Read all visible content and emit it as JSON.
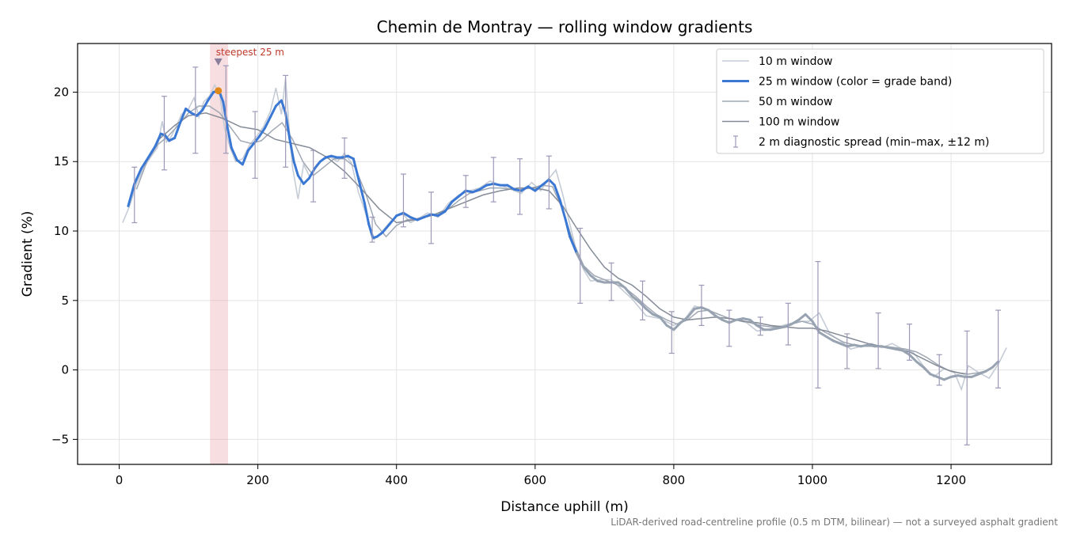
{
  "chart_data": {
    "type": "line",
    "title": "Chemin de Montray — rolling window gradients",
    "xlabel": "Distance uphill (m)",
    "ylabel": "Gradient (%)",
    "xlim": [
      -60,
      1345
    ],
    "ylim": [
      -6.8,
      23.5
    ],
    "xticks": [
      0,
      200,
      400,
      600,
      800,
      1000,
      1200
    ],
    "yticks": [
      -5,
      0,
      5,
      10,
      15,
      20
    ],
    "ytick_labels": [
      "−5",
      "0",
      "5",
      "10",
      "15",
      "20"
    ],
    "grid": true,
    "legend_position": "top-right",
    "caption": "LiDAR-derived road-centreline profile (0.5 m DTM, bilinear) — not a surveyed asphalt gradient",
    "highlight_band": {
      "x0": 131,
      "x1": 157,
      "color": "#e8a0a8"
    },
    "annotation": {
      "text": "steepest 25 m",
      "x": 143,
      "y": 22.2,
      "peak_x": 143,
      "peak_y": 20.1
    },
    "colors": {
      "w10": "#c5ccd6",
      "w25_steep": "#3a78d4",
      "w25_gentle": "#98a3b2",
      "w50": "#a0a8b4",
      "w100": "#858c97",
      "errorbar": "#9c98b8",
      "annotation": "#c0392b",
      "peak_marker": "#e0891a"
    },
    "series": [
      {
        "name": "10 m window",
        "x": [
          5,
          15,
          25,
          35,
          45,
          55,
          62,
          68,
          75,
          82,
          90,
          100,
          108,
          115,
          122,
          130,
          138,
          145,
          152,
          160,
          168,
          178,
          188,
          198,
          208,
          218,
          226,
          234,
          240,
          245,
          250,
          258,
          266,
          275,
          285,
          295,
          305,
          315,
          325,
          335,
          345,
          352,
          360,
          368,
          378,
          390,
          400,
          410,
          420,
          432,
          445,
          460,
          475,
          490,
          505,
          520,
          535,
          550,
          565,
          580,
          595,
          608,
          620,
          630,
          640,
          650,
          660,
          670,
          680,
          695,
          710,
          725,
          740,
          760,
          780,
          800,
          815,
          830,
          845,
          860,
          875,
          890,
          905,
          920,
          935,
          950,
          965,
          980,
          995,
          1010,
          1025,
          1040,
          1055,
          1070,
          1085,
          1100,
          1115,
          1130,
          1145,
          1160,
          1175,
          1190,
          1205,
          1215,
          1225,
          1240,
          1255,
          1268,
          1280
        ],
        "y": [
          10.6,
          11.8,
          13.4,
          14.5,
          15.3,
          16.0,
          17.9,
          16.4,
          16.8,
          17.5,
          18.4,
          18.8,
          19.6,
          18.2,
          19.3,
          19.7,
          20.5,
          19.8,
          17.4,
          16.0,
          15.0,
          15.2,
          16.2,
          16.8,
          17.5,
          18.6,
          20.3,
          18.4,
          21.0,
          17.5,
          14.6,
          12.3,
          14.8,
          13.9,
          14.8,
          15.2,
          15.3,
          15.0,
          15.6,
          14.9,
          12.8,
          11.8,
          10.6,
          9.4,
          9.9,
          10.6,
          11.1,
          11.2,
          10.6,
          10.9,
          11.3,
          11.0,
          12.0,
          12.6,
          12.9,
          13.1,
          13.6,
          13.3,
          13.0,
          12.7,
          13.5,
          12.9,
          13.8,
          14.4,
          12.6,
          10.5,
          8.5,
          7.2,
          6.4,
          6.5,
          6.5,
          5.8,
          5.1,
          3.9,
          3.7,
          3.2,
          3.6,
          4.6,
          4.4,
          4.1,
          3.8,
          3.6,
          3.4,
          2.8,
          2.9,
          3.1,
          3.3,
          3.5,
          3.5,
          4.1,
          2.6,
          2.1,
          1.5,
          1.7,
          1.9,
          1.6,
          1.9,
          1.5,
          1.3,
          0.3,
          -0.5,
          0.1,
          -0.2,
          -1.4,
          0.3,
          -0.2,
          -0.6,
          0.4,
          1.6
        ]
      },
      {
        "name": "25 m window (color = grade band)",
        "x": [
          13,
          22,
          32,
          42,
          52,
          60,
          66,
          72,
          80,
          88,
          96,
          104,
          112,
          120,
          128,
          136,
          144,
          150,
          156,
          162,
          170,
          178,
          186,
          194,
          202,
          210,
          218,
          226,
          234,
          240,
          246,
          252,
          258,
          266,
          274,
          282,
          290,
          298,
          306,
          314,
          322,
          330,
          338,
          346,
          354,
          360,
          366,
          372,
          380,
          390,
          400,
          410,
          420,
          430,
          440,
          450,
          460,
          470,
          480,
          490,
          500,
          510,
          520,
          530,
          540,
          550,
          560,
          570,
          580,
          590,
          600,
          610,
          620,
          628,
          636,
          644,
          650,
          660,
          670,
          680,
          690,
          700,
          710,
          720,
          730,
          740,
          750,
          760,
          770,
          780,
          790,
          800,
          810,
          820,
          830,
          840,
          850,
          860,
          870,
          880,
          890,
          900,
          910,
          920,
          930,
          940,
          950,
          960,
          970,
          980,
          990,
          1000,
          1010,
          1020,
          1030,
          1040,
          1050,
          1060,
          1070,
          1080,
          1090,
          1100,
          1110,
          1120,
          1130,
          1140,
          1150,
          1160,
          1170,
          1180,
          1190,
          1200,
          1210,
          1220,
          1230,
          1240,
          1250,
          1260,
          1268
        ],
        "y": [
          11.8,
          13.4,
          14.5,
          15.3,
          16.1,
          17.0,
          16.9,
          16.5,
          16.7,
          17.8,
          18.8,
          18.5,
          18.3,
          18.7,
          19.4,
          20.0,
          20.1,
          19.3,
          17.5,
          16.0,
          15.1,
          14.8,
          15.8,
          16.3,
          16.8,
          17.4,
          18.2,
          19.0,
          19.4,
          18.5,
          16.6,
          15.0,
          14.0,
          13.4,
          13.8,
          14.5,
          15.0,
          15.3,
          15.4,
          15.3,
          15.3,
          15.4,
          15.2,
          13.6,
          12.0,
          10.5,
          9.5,
          9.6,
          9.9,
          10.5,
          11.1,
          11.3,
          11.0,
          10.8,
          11.0,
          11.2,
          11.1,
          11.4,
          12.1,
          12.5,
          12.9,
          12.8,
          13.0,
          13.3,
          13.4,
          13.3,
          13.3,
          13.0,
          12.9,
          13.2,
          12.9,
          13.3,
          13.7,
          13.3,
          12.2,
          10.8,
          9.6,
          8.4,
          7.4,
          6.8,
          6.4,
          6.3,
          6.3,
          6.3,
          5.9,
          5.3,
          4.9,
          4.4,
          4.0,
          3.8,
          3.2,
          2.9,
          3.4,
          3.8,
          4.4,
          4.5,
          4.3,
          3.9,
          3.6,
          3.4,
          3.6,
          3.7,
          3.6,
          3.2,
          2.9,
          2.9,
          3.0,
          3.1,
          3.3,
          3.6,
          4.0,
          3.5,
          2.7,
          2.4,
          2.1,
          1.9,
          1.7,
          1.8,
          1.7,
          1.8,
          1.7,
          1.7,
          1.6,
          1.5,
          1.4,
          1.1,
          0.6,
          0.2,
          -0.3,
          -0.5,
          -0.7,
          -0.5,
          -0.4,
          -0.5,
          -0.5,
          -0.3,
          -0.1,
          0.2,
          0.6
        ]
      },
      {
        "name": "50 m window",
        "x": [
          25,
          40,
          55,
          70,
          85,
          100,
          115,
          130,
          145,
          160,
          175,
          190,
          205,
          220,
          235,
          250,
          265,
          280,
          295,
          310,
          325,
          340,
          355,
          370,
          385,
          400,
          415,
          430,
          445,
          460,
          475,
          490,
          505,
          520,
          535,
          550,
          565,
          580,
          595,
          610,
          625,
          640,
          655,
          670,
          685,
          700,
          715,
          730,
          745,
          760,
          775,
          790,
          805,
          820,
          835,
          850,
          865,
          880,
          895,
          910,
          925,
          940,
          955,
          970,
          985,
          1000,
          1015,
          1030,
          1045,
          1060,
          1075,
          1090,
          1105,
          1120,
          1135,
          1150,
          1165,
          1180,
          1195,
          1210,
          1225,
          1240,
          1255
        ],
        "y": [
          13.0,
          15.0,
          16.2,
          16.8,
          17.6,
          18.5,
          19.0,
          19.0,
          18.5,
          17.5,
          16.5,
          16.3,
          16.5,
          17.2,
          17.8,
          16.6,
          15.0,
          14.0,
          14.6,
          15.2,
          15.2,
          14.6,
          12.8,
          10.5,
          9.6,
          10.4,
          10.8,
          10.9,
          11.1,
          11.2,
          11.6,
          12.2,
          12.7,
          12.9,
          13.1,
          13.1,
          13.0,
          13.0,
          13.1,
          13.3,
          13.2,
          11.5,
          9.2,
          7.5,
          6.8,
          6.5,
          6.2,
          5.9,
          5.3,
          4.6,
          4.0,
          3.6,
          3.3,
          3.6,
          4.2,
          4.3,
          4.0,
          3.7,
          3.6,
          3.4,
          3.2,
          3.1,
          3.1,
          3.3,
          3.5,
          3.3,
          2.8,
          2.4,
          2.0,
          1.8,
          1.7,
          1.7,
          1.7,
          1.6,
          1.5,
          1.3,
          0.9,
          0.4,
          0.0,
          -0.2,
          -0.3,
          -0.2,
          0.0
        ]
      },
      {
        "name": "100 m window",
        "x": [
          55,
          80,
          100,
          125,
          150,
          175,
          200,
          225,
          250,
          275,
          300,
          325,
          350,
          375,
          400,
          425,
          450,
          475,
          500,
          525,
          550,
          575,
          600,
          620,
          640,
          660,
          680,
          700,
          720,
          740,
          760,
          780,
          800,
          820,
          840,
          860,
          880,
          900,
          920,
          940,
          960,
          980,
          1000,
          1020,
          1040,
          1060,
          1080,
          1100,
          1120,
          1140,
          1160,
          1180,
          1200,
          1220
        ],
        "y": [
          16.5,
          17.6,
          18.3,
          18.5,
          18.1,
          17.5,
          17.3,
          16.6,
          16.3,
          16.0,
          15.3,
          14.3,
          13.0,
          11.6,
          10.6,
          10.8,
          11.1,
          11.6,
          12.1,
          12.6,
          12.9,
          13.1,
          13.1,
          12.9,
          11.8,
          10.2,
          8.7,
          7.4,
          6.6,
          6.1,
          5.3,
          4.4,
          3.8,
          3.6,
          3.7,
          3.8,
          3.7,
          3.5,
          3.4,
          3.2,
          3.1,
          3.0,
          3.0,
          2.8,
          2.5,
          2.2,
          1.9,
          1.7,
          1.5,
          1.3,
          0.8,
          0.3,
          -0.1,
          -0.3
        ]
      },
      {
        "name": "2 m diagnostic spread (min–max, ±12 m)",
        "x": [
          22,
          65,
          110,
          154,
          196,
          240,
          280,
          325,
          365,
          410,
          450,
          500,
          540,
          578,
          620,
          665,
          710,
          755,
          797,
          840,
          880,
          925,
          965,
          1008,
          1050,
          1095,
          1140,
          1183,
          1223,
          1268
        ],
        "low": [
          10.6,
          14.4,
          15.6,
          15.6,
          13.8,
          14.6,
          12.1,
          13.8,
          9.2,
          10.3,
          9.1,
          11.7,
          12.1,
          11.2,
          11.6,
          4.8,
          5.0,
          3.6,
          1.2,
          3.2,
          1.7,
          2.5,
          1.8,
          -1.3,
          0.1,
          0.1,
          0.7,
          -1.1,
          -5.4,
          -1.3
        ],
        "high": [
          14.6,
          19.7,
          21.8,
          21.9,
          18.6,
          21.2,
          15.8,
          16.7,
          11.0,
          14.1,
          12.8,
          14.0,
          15.3,
          15.2,
          15.4,
          10.2,
          7.7,
          6.4,
          4.2,
          6.1,
          4.3,
          3.8,
          4.8,
          7.8,
          2.6,
          4.1,
          3.3,
          1.1,
          2.8,
          4.3
        ]
      }
    ]
  }
}
